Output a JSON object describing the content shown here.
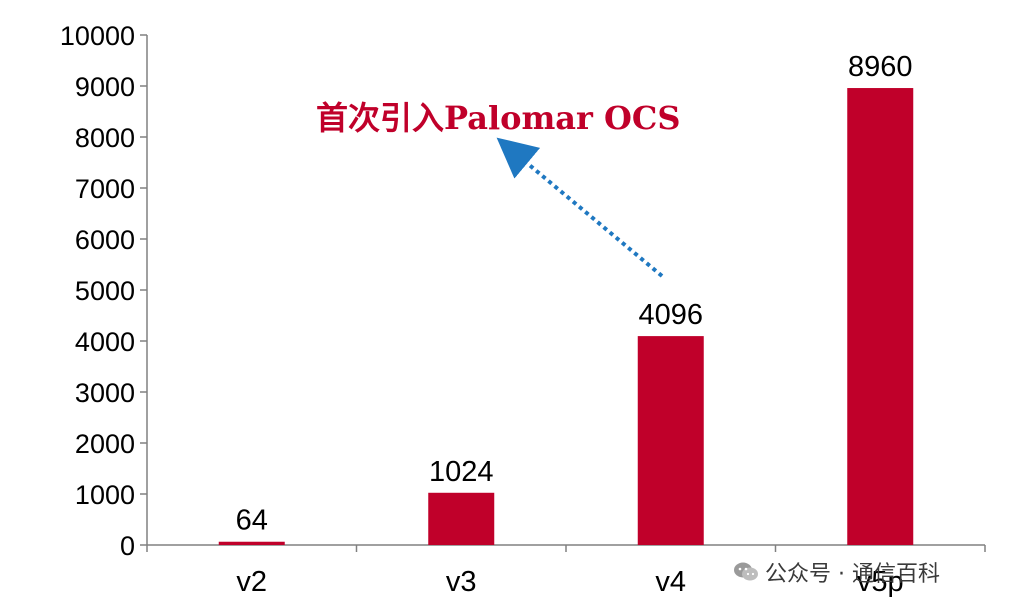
{
  "chart_data": {
    "type": "bar",
    "categories": [
      "v2",
      "v3",
      "v4",
      "v5p"
    ],
    "values": [
      64,
      1024,
      4096,
      8960
    ],
    "data_labels": [
      "64",
      "1024",
      "4096",
      "8960"
    ],
    "ylim": [
      0,
      10000
    ],
    "yticks": [
      0,
      1000,
      2000,
      3000,
      4000,
      5000,
      6000,
      7000,
      8000,
      9000,
      10000
    ],
    "ytick_labels": [
      "0",
      "1000",
      "2000",
      "3000",
      "4000",
      "5000",
      "6000",
      "7000",
      "8000",
      "9000",
      "10000"
    ],
    "grid": false,
    "title": "",
    "xlabel": "",
    "ylabel": "",
    "bar_color": "#C0002A",
    "annotation": {
      "text": "首次引入Palomar OCS",
      "color": "#C0002A",
      "arrow_color": "#1F78C1",
      "points_from_category": "v4"
    }
  },
  "watermark": {
    "text": "公众号 · 通信百科",
    "icon": "wechat-icon"
  }
}
